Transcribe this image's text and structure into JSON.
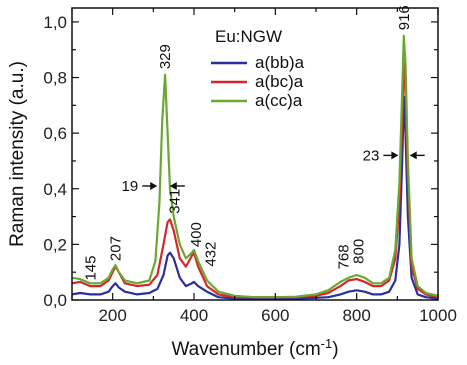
{
  "chart_data": {
    "type": "line",
    "title": "",
    "xlabel": "Wavenumber (cm",
    "xlabel_sup": "-1",
    "xlabel_suffix": ")",
    "ylabel": "Raman intensity (a.u.)",
    "xlim": [
      100,
      1000
    ],
    "ylim": [
      0,
      1.05
    ],
    "xticks": [
      200,
      400,
      600,
      800,
      1000
    ],
    "xtick_labels": [
      "200",
      "400",
      "600",
      "800",
      "1000"
    ],
    "yticks": [
      0.0,
      0.2,
      0.4,
      0.6,
      0.8,
      1.0
    ],
    "ytick_labels": [
      "0,0",
      "0,2",
      "0,4",
      "0,6",
      "0,8",
      "1,0"
    ],
    "grid": false,
    "legend": {
      "title": "Eu:NGW",
      "placement": "top-center"
    },
    "series": [
      {
        "name": "a(bb)a",
        "color": "#2b2f9a",
        "points": [
          [
            100,
            0.02
          ],
          [
            120,
            0.025
          ],
          [
            145,
            0.02
          ],
          [
            170,
            0.02
          ],
          [
            190,
            0.03
          ],
          [
            200,
            0.05
          ],
          [
            207,
            0.06
          ],
          [
            215,
            0.045
          ],
          [
            230,
            0.03
          ],
          [
            260,
            0.02
          ],
          [
            290,
            0.025
          ],
          [
            310,
            0.04
          ],
          [
            325,
            0.09
          ],
          [
            335,
            0.16
          ],
          [
            341,
            0.17
          ],
          [
            350,
            0.15
          ],
          [
            365,
            0.08
          ],
          [
            380,
            0.05
          ],
          [
            395,
            0.06
          ],
          [
            400,
            0.065
          ],
          [
            410,
            0.05
          ],
          [
            432,
            0.03
          ],
          [
            460,
            0.01
          ],
          [
            500,
            0.005
          ],
          [
            550,
            0.005
          ],
          [
            600,
            0.005
          ],
          [
            650,
            0.005
          ],
          [
            700,
            0.008
          ],
          [
            730,
            0.01
          ],
          [
            760,
            0.02
          ],
          [
            780,
            0.03
          ],
          [
            800,
            0.035
          ],
          [
            820,
            0.03
          ],
          [
            840,
            0.02
          ],
          [
            860,
            0.02
          ],
          [
            880,
            0.03
          ],
          [
            895,
            0.07
          ],
          [
            905,
            0.2
          ],
          [
            912,
            0.5
          ],
          [
            916,
            0.73
          ],
          [
            920,
            0.6
          ],
          [
            926,
            0.3
          ],
          [
            935,
            0.08
          ],
          [
            950,
            0.02
          ],
          [
            970,
            0.01
          ],
          [
            1000,
            0.005
          ]
        ]
      },
      {
        "name": "a(bc)a",
        "color": "#d62728",
        "points": [
          [
            100,
            0.06
          ],
          [
            120,
            0.065
          ],
          [
            145,
            0.05
          ],
          [
            170,
            0.05
          ],
          [
            190,
            0.07
          ],
          [
            200,
            0.1
          ],
          [
            207,
            0.12
          ],
          [
            215,
            0.1
          ],
          [
            230,
            0.06
          ],
          [
            260,
            0.05
          ],
          [
            290,
            0.055
          ],
          [
            310,
            0.09
          ],
          [
            325,
            0.2
          ],
          [
            335,
            0.28
          ],
          [
            341,
            0.29
          ],
          [
            350,
            0.25
          ],
          [
            365,
            0.15
          ],
          [
            380,
            0.12
          ],
          [
            395,
            0.16
          ],
          [
            400,
            0.17
          ],
          [
            410,
            0.12
          ],
          [
            432,
            0.05
          ],
          [
            460,
            0.02
          ],
          [
            500,
            0.01
          ],
          [
            550,
            0.01
          ],
          [
            600,
            0.01
          ],
          [
            650,
            0.01
          ],
          [
            700,
            0.015
          ],
          [
            730,
            0.025
          ],
          [
            760,
            0.05
          ],
          [
            780,
            0.07
          ],
          [
            800,
            0.075
          ],
          [
            820,
            0.065
          ],
          [
            840,
            0.05
          ],
          [
            860,
            0.05
          ],
          [
            880,
            0.07
          ],
          [
            895,
            0.15
          ],
          [
            905,
            0.35
          ],
          [
            912,
            0.65
          ],
          [
            916,
            0.85
          ],
          [
            920,
            0.75
          ],
          [
            926,
            0.45
          ],
          [
            935,
            0.12
          ],
          [
            950,
            0.04
          ],
          [
            970,
            0.02
          ],
          [
            1000,
            0.01
          ]
        ]
      },
      {
        "name": "a(cc)a",
        "color": "#6aa832",
        "points": [
          [
            100,
            0.08
          ],
          [
            120,
            0.075
          ],
          [
            145,
            0.06
          ],
          [
            170,
            0.06
          ],
          [
            190,
            0.08
          ],
          [
            200,
            0.11
          ],
          [
            207,
            0.125
          ],
          [
            215,
            0.1
          ],
          [
            230,
            0.07
          ],
          [
            260,
            0.06
          ],
          [
            290,
            0.07
          ],
          [
            305,
            0.14
          ],
          [
            315,
            0.35
          ],
          [
            322,
            0.65
          ],
          [
            329,
            0.81
          ],
          [
            335,
            0.6
          ],
          [
            341,
            0.4
          ],
          [
            350,
            0.3
          ],
          [
            365,
            0.2
          ],
          [
            380,
            0.15
          ],
          [
            395,
            0.17
          ],
          [
            400,
            0.18
          ],
          [
            410,
            0.14
          ],
          [
            432,
            0.07
          ],
          [
            460,
            0.03
          ],
          [
            500,
            0.015
          ],
          [
            550,
            0.01
          ],
          [
            600,
            0.01
          ],
          [
            650,
            0.012
          ],
          [
            700,
            0.02
          ],
          [
            730,
            0.035
          ],
          [
            760,
            0.065
          ],
          [
            780,
            0.08
          ],
          [
            800,
            0.09
          ],
          [
            820,
            0.08
          ],
          [
            840,
            0.06
          ],
          [
            860,
            0.06
          ],
          [
            880,
            0.08
          ],
          [
            895,
            0.18
          ],
          [
            905,
            0.42
          ],
          [
            912,
            0.75
          ],
          [
            916,
            0.95
          ],
          [
            920,
            0.85
          ],
          [
            926,
            0.5
          ],
          [
            935,
            0.15
          ],
          [
            950,
            0.05
          ],
          [
            970,
            0.025
          ],
          [
            1000,
            0.015
          ]
        ]
      }
    ],
    "peak_labels": [
      {
        "text": "145",
        "x": 145,
        "y": 0.07,
        "rotate": true
      },
      {
        "text": "207",
        "x": 207,
        "y": 0.14,
        "rotate": true
      },
      {
        "text": "329",
        "x": 329,
        "y": 0.83,
        "rotate": true
      },
      {
        "text": "341",
        "x": 352,
        "y": 0.31,
        "rotate": true
      },
      {
        "text": "400",
        "x": 405,
        "y": 0.19,
        "rotate": true
      },
      {
        "text": "432",
        "x": 440,
        "y": 0.12,
        "rotate": true
      },
      {
        "text": "768",
        "x": 768,
        "y": 0.11,
        "rotate": true
      },
      {
        "text": "800",
        "x": 805,
        "y": 0.13,
        "rotate": true
      },
      {
        "text": "916",
        "x": 916,
        "y": 0.97,
        "rotate": true
      }
    ],
    "fwhm_markers": [
      {
        "text": "19",
        "x_left": 312,
        "x_right": 338,
        "y": 0.41
      },
      {
        "text": "23",
        "x_left": 905,
        "x_right": 928,
        "y": 0.52
      }
    ]
  }
}
